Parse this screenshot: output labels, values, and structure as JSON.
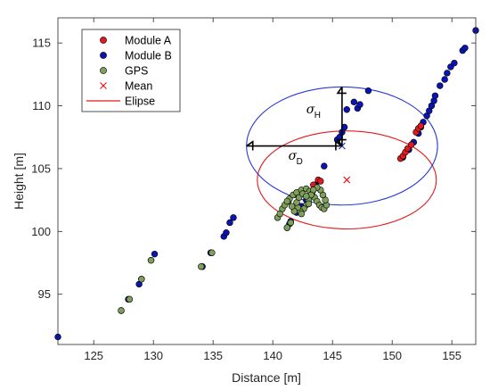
{
  "chart_data": {
    "type": "scatter",
    "title": "",
    "xlabel": "Distance [m]",
    "ylabel": "Height [m]",
    "xlim": [
      122,
      157
    ],
    "ylim": [
      91,
      117
    ],
    "xticks": [
      125,
      130,
      135,
      140,
      145,
      150,
      155
    ],
    "yticks": [
      95,
      100,
      105,
      110,
      115
    ],
    "grid": false,
    "legend_position": "top-left",
    "legend": [
      "Module A",
      "Module B",
      "GPS",
      "Mean",
      "Elipse"
    ],
    "colors": {
      "module_a": "#e31a1c",
      "module_b": "#0a14b4",
      "gps": "#7fa05a",
      "mean": "#e31a1c",
      "ellipse_a": "#e31a1c",
      "ellipse_b": "#2a3ad8",
      "axes": "#262626"
    },
    "series": [
      {
        "name": "Module B",
        "marker": "dot",
        "points": [
          [
            122.0,
            91.6
          ],
          [
            127.3,
            93.7
          ],
          [
            127.9,
            94.6
          ],
          [
            128.8,
            95.8
          ],
          [
            129.0,
            96.2
          ],
          [
            129.8,
            97.7
          ],
          [
            130.1,
            98.2
          ],
          [
            134.1,
            97.2
          ],
          [
            134.8,
            98.3
          ],
          [
            135.9,
            99.6
          ],
          [
            136.1,
            99.9
          ],
          [
            136.4,
            100.7
          ],
          [
            136.7,
            101.1
          ],
          [
            141.2,
            100.3
          ],
          [
            141.4,
            100.6
          ],
          [
            141.5,
            100.8
          ],
          [
            142.0,
            101.5
          ],
          [
            142.4,
            102.0
          ],
          [
            142.8,
            102.5
          ],
          [
            143.2,
            103.0
          ],
          [
            143.5,
            103.6
          ],
          [
            143.8,
            104.0
          ],
          [
            144.3,
            105.2
          ],
          [
            145.4,
            107.3
          ],
          [
            145.6,
            107.5
          ],
          [
            145.8,
            107.9
          ],
          [
            146.0,
            108.3
          ],
          [
            146.2,
            109.7
          ],
          [
            146.8,
            110.3
          ],
          [
            147.1,
            109.8
          ],
          [
            147.3,
            110.1
          ],
          [
            148.0,
            111.2
          ],
          [
            150.9,
            105.9
          ],
          [
            151.4,
            106.5
          ],
          [
            151.8,
            107.1
          ],
          [
            152.2,
            107.8
          ],
          [
            152.4,
            108.3
          ],
          [
            152.6,
            108.7
          ],
          [
            152.9,
            109.2
          ],
          [
            153.1,
            109.6
          ],
          [
            153.3,
            110.0
          ],
          [
            153.5,
            110.4
          ],
          [
            153.6,
            110.8
          ],
          [
            154.0,
            111.6
          ],
          [
            154.4,
            112.1
          ],
          [
            154.6,
            112.6
          ],
          [
            154.9,
            113.1
          ],
          [
            155.2,
            113.4
          ],
          [
            155.9,
            114.4
          ],
          [
            156.1,
            114.6
          ],
          [
            157.0,
            116.0
          ]
        ]
      },
      {
        "name": "Module A",
        "marker": "dot",
        "points": [
          [
            150.7,
            105.8
          ],
          [
            150.9,
            106.0
          ],
          [
            151.1,
            106.3
          ],
          [
            151.3,
            106.6
          ],
          [
            151.6,
            106.9
          ],
          [
            152.0,
            107.9
          ],
          [
            152.2,
            108.2
          ],
          [
            152.4,
            108.4
          ],
          [
            143.4,
            103.7
          ],
          [
            143.8,
            104.1
          ],
          [
            144.0,
            104.0
          ]
        ]
      },
      {
        "name": "GPS",
        "marker": "dot",
        "points": [
          [
            127.3,
            93.7
          ],
          [
            128.0,
            94.6
          ],
          [
            129.0,
            96.2
          ],
          [
            129.8,
            97.7
          ],
          [
            134.0,
            97.2
          ],
          [
            134.9,
            98.3
          ],
          [
            141.2,
            100.3
          ],
          [
            141.5,
            100.7
          ],
          [
            140.4,
            101.1
          ],
          [
            140.6,
            101.4
          ],
          [
            140.8,
            101.8
          ],
          [
            141.0,
            102.1
          ],
          [
            141.3,
            102.4
          ],
          [
            141.4,
            102.6
          ],
          [
            141.7,
            102.9
          ],
          [
            142.0,
            103.1
          ],
          [
            142.4,
            103.3
          ],
          [
            142.8,
            103.4
          ],
          [
            143.1,
            103.2
          ],
          [
            143.3,
            103.0
          ],
          [
            143.5,
            102.7
          ],
          [
            143.7,
            102.4
          ],
          [
            143.9,
            102.1
          ],
          [
            144.1,
            101.9
          ],
          [
            144.3,
            101.8
          ],
          [
            144.5,
            102.1
          ],
          [
            144.4,
            102.5
          ],
          [
            144.2,
            102.9
          ],
          [
            144.0,
            103.3
          ],
          [
            143.7,
            103.5
          ],
          [
            143.4,
            103.3
          ],
          [
            143.2,
            102.9
          ],
          [
            143.0,
            102.5
          ],
          [
            142.8,
            102.1
          ],
          [
            142.6,
            101.8
          ],
          [
            142.3,
            101.6
          ],
          [
            142.1,
            101.9
          ],
          [
            142.0,
            102.3
          ],
          [
            142.2,
            102.7
          ],
          [
            142.5,
            103.0
          ],
          [
            142.8,
            102.8
          ],
          [
            143.0,
            102.2
          ],
          [
            142.4,
            101.4
          ],
          [
            141.8,
            101.6
          ],
          [
            141.6,
            102.0
          ],
          [
            141.2,
            102.4
          ]
        ]
      }
    ],
    "mean_points": [
      [
        145.8,
        106.8
      ],
      [
        146.2,
        104.1
      ]
    ],
    "ellipses": [
      {
        "legend": "Elipse",
        "cx": 146.2,
        "cy": 104.1,
        "rx": 7.5,
        "ry": 3.9,
        "color": "ellipse_a"
      },
      {
        "cx": 145.8,
        "cy": 106.8,
        "rx": 8.0,
        "ry": 4.7,
        "color": "ellipse_b"
      }
    ],
    "annotations": [
      {
        "symbol": "σ",
        "subscript": "H",
        "anchor": [
          142.8,
          109.4
        ],
        "arrow": "vertical",
        "from": [
          145.8,
          106.8
        ],
        "to": [
          145.8,
          111.5
        ]
      },
      {
        "symbol": "σ",
        "subscript": "D",
        "anchor": [
          141.3,
          105.7
        ],
        "arrow": "horizontal",
        "from": [
          137.8,
          106.8
        ],
        "to": [
          145.8,
          106.8
        ]
      }
    ]
  }
}
